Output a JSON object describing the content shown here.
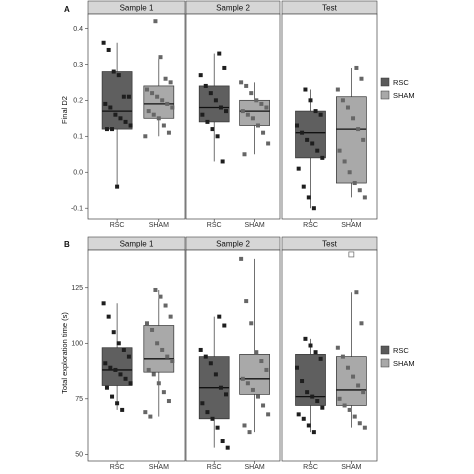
{
  "chart_data": [
    {
      "type": "box",
      "panel_label": "A",
      "ylabel": "Final D2",
      "yticks": [
        -0.1,
        0.0,
        0.1,
        0.2,
        0.3,
        0.4
      ],
      "ytick_labels": [
        "-0.1",
        "0.0",
        "0.1",
        "0.2",
        "0.3",
        "0.4"
      ],
      "ylim": [
        -0.13,
        0.44
      ],
      "categories": [
        "RSC",
        "SHAM"
      ],
      "legend": {
        "items": [
          {
            "label": "RSC",
            "color": "#5a5a5a"
          },
          {
            "label": "SHAM",
            "color": "#a8a8a8"
          }
        ]
      },
      "facets": [
        {
          "title": "Sample 1",
          "boxes": [
            {
              "group": "RSC",
              "q1": 0.12,
              "median": 0.17,
              "q3": 0.28,
              "whisker_low": -0.04,
              "whisker_high": 0.36,
              "points": [
                0.36,
                0.34,
                0.28,
                0.27,
                0.21,
                0.21,
                0.19,
                0.18,
                0.16,
                0.15,
                0.14,
                0.13,
                0.12,
                0.12,
                -0.04
              ]
            },
            {
              "group": "SHAM",
              "q1": 0.15,
              "median": 0.19,
              "q3": 0.24,
              "whisker_low": 0.1,
              "whisker_high": 0.32,
              "points": [
                0.42,
                0.32,
                0.26,
                0.25,
                0.23,
                0.22,
                0.21,
                0.2,
                0.19,
                0.18,
                0.17,
                0.16,
                0.15,
                0.13,
                0.11,
                0.1
              ]
            }
          ]
        },
        {
          "title": "Sample 2",
          "boxes": [
            {
              "group": "RSC",
              "q1": 0.14,
              "median": 0.18,
              "q3": 0.24,
              "whisker_low": 0.03,
              "whisker_high": 0.33,
              "points": [
                0.33,
                0.29,
                0.27,
                0.24,
                0.22,
                0.2,
                0.18,
                0.17,
                0.16,
                0.14,
                0.12,
                0.1,
                0.03
              ]
            },
            {
              "group": "SHAM",
              "q1": 0.13,
              "median": 0.17,
              "q3": 0.2,
              "whisker_low": 0.05,
              "whisker_high": 0.25,
              "points": [
                0.25,
                0.24,
                0.22,
                0.2,
                0.19,
                0.18,
                0.17,
                0.16,
                0.15,
                0.13,
                0.11,
                0.08,
                0.05
              ]
            }
          ]
        },
        {
          "title": "Test",
          "boxes": [
            {
              "group": "RSC",
              "q1": 0.04,
              "median": 0.11,
              "q3": 0.17,
              "whisker_low": -0.1,
              "whisker_high": 0.23,
              "points": [
                0.23,
                0.2,
                0.17,
                0.16,
                0.13,
                0.11,
                0.09,
                0.08,
                0.06,
                0.04,
                0.01,
                -0.04,
                -0.07,
                -0.1
              ]
            },
            {
              "group": "SHAM",
              "q1": -0.03,
              "median": 0.12,
              "q3": 0.21,
              "whisker_low": -0.07,
              "whisker_high": 0.29,
              "points": [
                0.29,
                0.26,
                0.23,
                0.2,
                0.18,
                0.15,
                0.12,
                0.09,
                0.06,
                0.03,
                0.0,
                -0.03,
                -0.05,
                -0.07
              ]
            }
          ]
        }
      ]
    },
    {
      "type": "box",
      "panel_label": "B",
      "ylabel": "Total exploration time (s)",
      "yticks": [
        50,
        75,
        100,
        125
      ],
      "ytick_labels": [
        "50",
        "75",
        "100",
        "125"
      ],
      "ylim": [
        47,
        142
      ],
      "categories": [
        "RSC",
        "SHAM"
      ],
      "legend": {
        "items": [
          {
            "label": "RSC",
            "color": "#5a5a5a"
          },
          {
            "label": "SHAM",
            "color": "#a8a8a8"
          }
        ]
      },
      "facets": [
        {
          "title": "Sample 1",
          "boxes": [
            {
              "group": "RSC",
              "q1": 81,
              "median": 88,
              "q3": 98,
              "whisker_low": 70,
              "whisker_high": 118,
              "points": [
                118,
                112,
                105,
                100,
                97,
                94,
                91,
                89,
                88,
                86,
                84,
                82,
                80,
                76,
                73,
                70
              ]
            },
            {
              "group": "SHAM",
              "q1": 87,
              "median": 93,
              "q3": 108,
              "whisker_low": 67,
              "whisker_high": 124,
              "points": [
                124,
                121,
                117,
                112,
                109,
                106,
                100,
                97,
                94,
                92,
                88,
                86,
                82,
                78,
                74,
                69,
                67
              ]
            }
          ]
        },
        {
          "title": "Sample 2",
          "boxes": [
            {
              "group": "RSC",
              "q1": 66,
              "median": 80,
              "q3": 94,
              "whisker_low": 53,
              "whisker_high": 112,
              "points": [
                112,
                108,
                97,
                94,
                91,
                86,
                80,
                77,
                73,
                69,
                66,
                62,
                56,
                53
              ]
            },
            {
              "group": "SHAM",
              "q1": 77,
              "median": 84,
              "q3": 95,
              "whisker_low": 60,
              "whisker_high": 138,
              "points": [
                138,
                119,
                109,
                96,
                92,
                88,
                84,
                82,
                79,
                76,
                72,
                68,
                63,
                60
              ]
            }
          ]
        },
        {
          "title": "Test",
          "boxes": [
            {
              "group": "RSC",
              "q1": 72,
              "median": 76,
              "q3": 95,
              "whisker_low": 60,
              "whisker_high": 102,
              "points": [
                102,
                99,
                96,
                93,
                89,
                83,
                78,
                76,
                74,
                71,
                68,
                66,
                63,
                60
              ]
            },
            {
              "group": "SHAM",
              "q1": 72,
              "median": 79,
              "q3": 94,
              "whisker_low": 62,
              "whisker_high": 123,
              "points": [
                123,
                109,
                98,
                94,
                89,
                85,
                81,
                78,
                75,
                72,
                70,
                67,
                64,
                62
              ],
              "outliers": [
                140
              ]
            }
          ]
        }
      ]
    }
  ]
}
